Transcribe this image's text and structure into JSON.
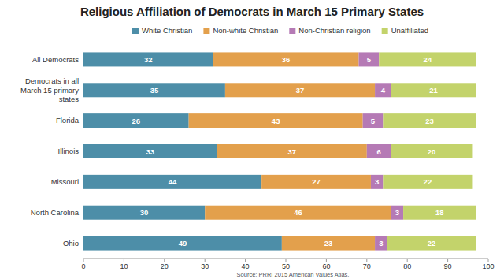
{
  "chart_data": {
    "type": "bar",
    "title": "Religious Affiliation of Democrats in March 15 Primary States",
    "source": "Source: PRRI 2015 American Values Atlas.",
    "orientation": "horizontal",
    "stacked": true,
    "data_labels": true,
    "grid": false,
    "legend": "top",
    "categories": [
      "All Democrats",
      "Democrats in all March 15 primary states",
      "Florida",
      "Illinois",
      "Missouri",
      "North Carolina",
      "Ohio"
    ],
    "series": [
      {
        "name": "White Christian",
        "color": "#4d8ea8",
        "values": [
          32,
          35,
          26,
          33,
          44,
          30,
          49
        ]
      },
      {
        "name": "Non-white Christian",
        "color": "#e3a04c",
        "values": [
          36,
          37,
          43,
          37,
          27,
          46,
          23
        ]
      },
      {
        "name": "Non-Christian religion",
        "color": "#b57ab5",
        "values": [
          5,
          4,
          5,
          6,
          3,
          3,
          3
        ]
      },
      {
        "name": "Unaffiliated",
        "color": "#c3d36b",
        "values": [
          24,
          21,
          23,
          20,
          22,
          18,
          22
        ]
      }
    ],
    "xlim": [
      0,
      100
    ],
    "xticks": [
      0,
      10,
      20,
      30,
      40,
      50,
      60,
      70,
      80,
      90,
      100
    ]
  }
}
